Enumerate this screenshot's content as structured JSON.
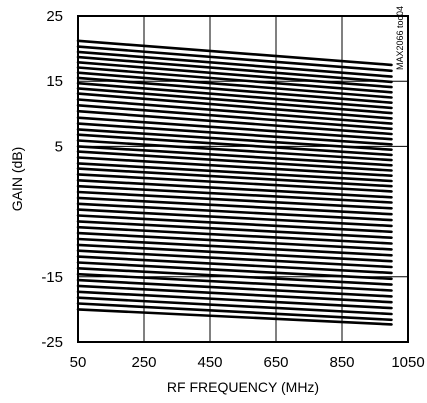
{
  "chart_data": {
    "type": "line",
    "xlabel": "RF FREQUENCY (MHz)",
    "ylabel": "GAIN (dB)",
    "xlim": [
      50,
      1050
    ],
    "ylim": [
      -25,
      25
    ],
    "x_ticks": [
      "50",
      "250",
      "450",
      "650",
      "850",
      "1050"
    ],
    "y_ticks": [
      "25",
      "15",
      "5",
      "-15",
      "-25"
    ],
    "grid": true,
    "legend": "none",
    "note": "MAX2066 toc04",
    "line_color": "#000000",
    "x": [
      50,
      1000
    ],
    "series": [
      {
        "values": [
          21.2,
          17.5
        ]
      },
      {
        "values": [
          20.3,
          16.6
        ]
      },
      {
        "values": [
          19.5,
          15.7
        ]
      },
      {
        "values": [
          18.7,
          14.9
        ]
      },
      {
        "values": [
          17.9,
          14.1
        ]
      },
      {
        "values": [
          17.1,
          13.3
        ]
      },
      {
        "values": [
          16.3,
          12.5
        ]
      },
      {
        "values": [
          15.5,
          11.7
        ]
      },
      {
        "values": [
          14.7,
          10.9
        ]
      },
      {
        "values": [
          13.9,
          10.1
        ]
      },
      {
        "values": [
          13.1,
          9.3
        ]
      },
      {
        "values": [
          12.2,
          8.5
        ]
      },
      {
        "values": [
          11.3,
          7.7
        ]
      },
      {
        "values": [
          10.4,
          6.9
        ]
      },
      {
        "values": [
          9.4,
          6.1
        ]
      },
      {
        "values": [
          8.5,
          5.3
        ]
      },
      {
        "values": [
          7.6,
          4.5
        ]
      },
      {
        "values": [
          6.8,
          3.7
        ]
      },
      {
        "values": [
          5.9,
          2.9
        ]
      },
      {
        "values": [
          5.0,
          2.1
        ]
      },
      {
        "values": [
          4.2,
          1.3
        ]
      },
      {
        "values": [
          3.3,
          0.5
        ]
      },
      {
        "values": [
          2.4,
          -0.3
        ]
      },
      {
        "values": [
          1.6,
          -1.1
        ]
      },
      {
        "values": [
          0.7,
          -1.9
        ]
      },
      {
        "values": [
          -0.2,
          -2.8
        ]
      },
      {
        "values": [
          -1.1,
          -3.6
        ]
      },
      {
        "values": [
          -2.0,
          -4.5
        ]
      },
      {
        "values": [
          -2.9,
          -5.4
        ]
      },
      {
        "values": [
          -3.8,
          -6.3
        ]
      },
      {
        "values": [
          -4.7,
          -7.2
        ]
      },
      {
        "values": [
          -5.6,
          -8.1
        ]
      },
      {
        "values": [
          -6.5,
          -9.0
        ]
      },
      {
        "values": [
          -7.4,
          -9.9
        ]
      },
      {
        "values": [
          -8.3,
          -10.8
        ]
      },
      {
        "values": [
          -9.2,
          -11.7
        ]
      },
      {
        "values": [
          -10.1,
          -12.6
        ]
      },
      {
        "values": [
          -11.0,
          -13.5
        ]
      },
      {
        "values": [
          -11.9,
          -14.4
        ]
      },
      {
        "values": [
          -12.8,
          -15.3
        ]
      },
      {
        "values": [
          -13.7,
          -16.2
        ]
      },
      {
        "values": [
          -14.6,
          -17.1
        ]
      },
      {
        "values": [
          -15.5,
          -18.0
        ]
      },
      {
        "values": [
          -16.4,
          -18.9
        ]
      },
      {
        "values": [
          -17.3,
          -19.8
        ]
      },
      {
        "values": [
          -18.2,
          -20.7
        ]
      },
      {
        "values": [
          -19.1,
          -21.6
        ]
      },
      {
        "values": [
          -20.0,
          -22.3
        ]
      }
    ]
  }
}
